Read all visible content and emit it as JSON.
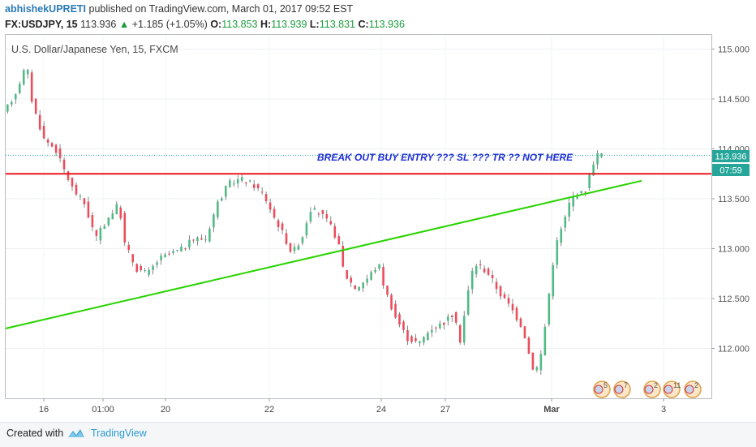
{
  "header": {
    "author": "abhishekUPRETI",
    "published_text": "published on TradingView.com, March 01, 2017 09:52 EST",
    "symbol": "FX:USDJPY, 15",
    "last": "113.936",
    "change": "+1.185 (+1.05%)",
    "ohlc": [
      {
        "label": "O:",
        "value": "113.853"
      },
      {
        "label": "H:",
        "value": "113.939"
      },
      {
        "label": "L:",
        "value": "113.831"
      },
      {
        "label": "C:",
        "value": "113.936"
      }
    ]
  },
  "chart_data": {
    "type": "candlestick",
    "title": "U.S. Dollar/Japanese Yen, 15, FXCM",
    "ylim": [
      111.5,
      115.15
    ],
    "y_ticks": [
      {
        "value": 115.0,
        "label": "115.000"
      },
      {
        "value": 114.5,
        "label": "114.500"
      },
      {
        "value": 114.0,
        "label": "114.000"
      },
      {
        "value": 113.5,
        "label": "113.500"
      },
      {
        "value": 113.0,
        "label": "113.000"
      },
      {
        "value": 112.5,
        "label": "112.500"
      },
      {
        "value": 112.0,
        "label": "112.000"
      }
    ],
    "x_ticks": [
      "16",
      "01:00",
      "20",
      "22",
      "24",
      "27",
      "Mar",
      "3"
    ],
    "price_path": [
      [
        0,
        114.35
      ],
      [
        2,
        114.55
      ],
      [
        4,
        114.85
      ],
      [
        5,
        114.45
      ],
      [
        7,
        114.1
      ],
      [
        9,
        114.0
      ],
      [
        10,
        113.85
      ],
      [
        12,
        113.6
      ],
      [
        14,
        113.45
      ],
      [
        16,
        113.1
      ],
      [
        18,
        113.3
      ],
      [
        20,
        113.45
      ],
      [
        21,
        113.05
      ],
      [
        23,
        112.8
      ],
      [
        25,
        112.75
      ],
      [
        27,
        112.9
      ],
      [
        29,
        112.95
      ],
      [
        31,
        113.0
      ],
      [
        33,
        113.1
      ],
      [
        35,
        113.1
      ],
      [
        37,
        113.45
      ],
      [
        39,
        113.65
      ],
      [
        41,
        113.7
      ],
      [
        43,
        113.65
      ],
      [
        45,
        113.55
      ],
      [
        47,
        113.3
      ],
      [
        48,
        113.2
      ],
      [
        50,
        112.95
      ],
      [
        52,
        113.15
      ],
      [
        53,
        113.4
      ],
      [
        55,
        113.35
      ],
      [
        57,
        113.2
      ],
      [
        58,
        113.05
      ],
      [
        59,
        112.75
      ],
      [
        61,
        112.6
      ],
      [
        63,
        112.7
      ],
      [
        65,
        112.85
      ],
      [
        66,
        112.6
      ],
      [
        68,
        112.3
      ],
      [
        70,
        112.1
      ],
      [
        72,
        112.05
      ],
      [
        74,
        112.2
      ],
      [
        76,
        112.25
      ],
      [
        78,
        112.35
      ],
      [
        79,
        112.05
      ],
      [
        80,
        112.4
      ],
      [
        81,
        112.75
      ],
      [
        82,
        112.85
      ],
      [
        84,
        112.75
      ],
      [
        86,
        112.55
      ],
      [
        88,
        112.4
      ],
      [
        90,
        112.2
      ],
      [
        91,
        111.95
      ],
      [
        92,
        111.75
      ],
      [
        93,
        111.9
      ],
      [
        94,
        112.3
      ],
      [
        95,
        112.8
      ],
      [
        96,
        113.1
      ],
      [
        97,
        113.25
      ],
      [
        98,
        113.45
      ],
      [
        99,
        113.55
      ],
      [
        100,
        113.55
      ],
      [
        101,
        113.6
      ],
      [
        102,
        113.85
      ],
      [
        103,
        113.95
      ]
    ],
    "horizontal_line": {
      "value": 113.75,
      "color": "#e8171f"
    },
    "trend_line": {
      "from": [
        113.05,
        112.2
      ],
      "to": [
        113.92,
        113.68
      ],
      "color": "#28d400"
    },
    "dotted_line": {
      "value": 113.936,
      "color": "#26a69a"
    },
    "annotation": "BREAK OUT BUY ENTRY ??? SL ??? TR ?? NOT HERE",
    "last_price_label": "113.936",
    "countdown_label": "07:59",
    "event_badges": [
      "5",
      "7",
      "2",
      "11",
      "2"
    ]
  },
  "footer": {
    "created_with": "Created with",
    "brand": "TradingView"
  },
  "colors": {
    "up_candle": "#53b987",
    "down_candle": "#eb4d5c",
    "wick": "#555555",
    "annotation": "#1f2fd6",
    "brand": "#2a9bd4"
  }
}
